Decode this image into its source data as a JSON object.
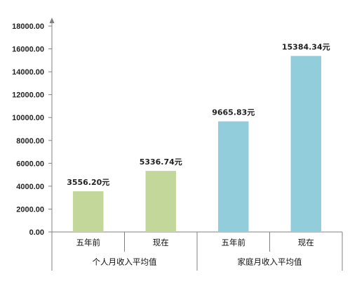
{
  "chart_data": {
    "type": "bar",
    "title": "",
    "xlabel": "",
    "ylabel": "",
    "ylim": [
      0,
      18000
    ],
    "ytick_step": 2000,
    "ytick_labels": [
      "0.00",
      "2000.00",
      "4000.00",
      "6000.00",
      "8000.00",
      "10000.00",
      "12000.00",
      "14000.00",
      "16000.00",
      "18000.00"
    ],
    "grid": false,
    "legend": "none",
    "groups": [
      {
        "name": "个人月收入平均值",
        "color": "#c4d79b",
        "bars": [
          {
            "category": "五年前",
            "value": 3556.2,
            "label": "3556.20元"
          },
          {
            "category": "现在",
            "value": 5336.74,
            "label": "5336.74元"
          }
        ]
      },
      {
        "name": "家庭月收入平均值",
        "color": "#92cddc",
        "bars": [
          {
            "category": "五年前",
            "value": 9665.83,
            "label": "9665.83元"
          },
          {
            "category": "现在",
            "value": 15384.34,
            "label": "15384.34元"
          }
        ]
      }
    ]
  }
}
